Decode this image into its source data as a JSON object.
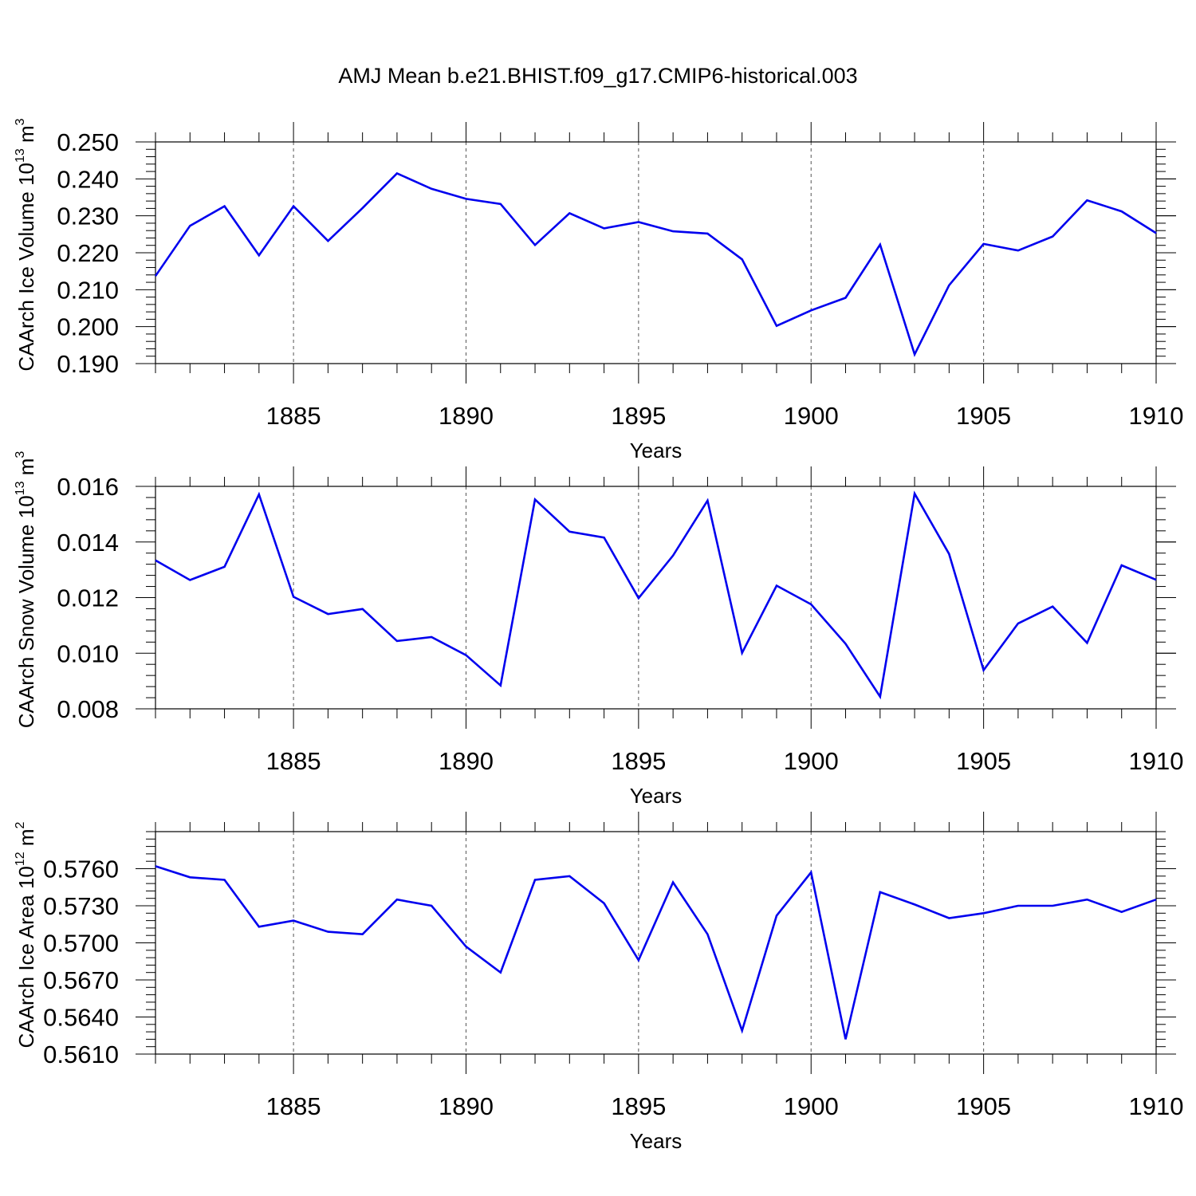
{
  "title": "AMJ Mean b.e21.BHIST.f09_g17.CMIP6-historical.003",
  "colors": {
    "line": "#0000ee",
    "axis": "#000000",
    "grid": "#555555",
    "background": "#ffffff"
  },
  "chart_data": [
    {
      "type": "line",
      "title": "AMJ Mean b.e21.BHIST.f09_g17.CMIP6-historical.003",
      "ylabel": {
        "main": "CAArch Ice Volume 10",
        "exp": "13",
        "unit": " m",
        "unit_exp": "3"
      },
      "xlabel": "Years",
      "xlim": [
        1881,
        1910
      ],
      "ylim": [
        0.19,
        0.25
      ],
      "xticks": [
        1885,
        1890,
        1895,
        1900,
        1905,
        1910
      ],
      "yticks": [
        0.19,
        0.2,
        0.21,
        0.22,
        0.23,
        0.24,
        0.25
      ],
      "ytick_labels": [
        "0.190",
        "0.200",
        "0.210",
        "0.220",
        "0.230",
        "0.240",
        "0.250"
      ],
      "grid": "vertical dashed at major x ticks",
      "x": [
        1881,
        1882,
        1883,
        1884,
        1885,
        1886,
        1887,
        1888,
        1889,
        1890,
        1891,
        1892,
        1893,
        1894,
        1895,
        1896,
        1897,
        1898,
        1899,
        1900,
        1901,
        1902,
        1903,
        1904,
        1905,
        1906,
        1907,
        1908,
        1909,
        1910
      ],
      "series": [
        {
          "name": "CAArch Ice Volume",
          "values": [
            0.2137,
            0.2273,
            0.2326,
            0.2193,
            0.2326,
            0.2232,
            0.2321,
            0.2415,
            0.2373,
            0.2346,
            0.2332,
            0.2221,
            0.2307,
            0.2266,
            0.2283,
            0.2258,
            0.2252,
            0.2182,
            0.2002,
            0.2044,
            0.2078,
            0.2222,
            0.1925,
            0.2112,
            0.2224,
            0.2206,
            0.2244,
            0.2342,
            0.2312,
            0.2253
          ]
        }
      ]
    },
    {
      "type": "line",
      "ylabel": {
        "main": "CAArch Snow Volume 10",
        "exp": "13",
        "unit": " m",
        "unit_exp": "3"
      },
      "xlabel": "Years",
      "xlim": [
        1881,
        1910
      ],
      "ylim": [
        0.008,
        0.016
      ],
      "xticks": [
        1885,
        1890,
        1895,
        1900,
        1905,
        1910
      ],
      "yticks": [
        0.008,
        0.01,
        0.012,
        0.014,
        0.016
      ],
      "ytick_labels": [
        "0.008",
        "0.010",
        "0.012",
        "0.014",
        "0.016"
      ],
      "grid": "vertical dashed at major x ticks",
      "x": [
        1881,
        1882,
        1883,
        1884,
        1885,
        1886,
        1887,
        1888,
        1889,
        1890,
        1891,
        1892,
        1893,
        1894,
        1895,
        1896,
        1897,
        1898,
        1899,
        1900,
        1901,
        1902,
        1903,
        1904,
        1905,
        1906,
        1907,
        1908,
        1909,
        1910
      ],
      "series": [
        {
          "name": "CAArch Snow Volume",
          "values": [
            0.01334,
            0.01263,
            0.01311,
            0.01571,
            0.01203,
            0.01141,
            0.01159,
            0.01044,
            0.01058,
            0.00993,
            0.00884,
            0.01553,
            0.01437,
            0.01416,
            0.01198,
            0.01351,
            0.01549,
            0.01001,
            0.01243,
            0.01176,
            0.01034,
            0.00844,
            0.01574,
            0.01357,
            0.00939,
            0.01107,
            0.01168,
            0.01037,
            0.01316,
            0.01264
          ]
        }
      ]
    },
    {
      "type": "line",
      "ylabel": {
        "main": "CAArch Ice Area 10",
        "exp": "12",
        "unit": " m",
        "unit_exp": "2"
      },
      "xlabel": "Years",
      "xlim": [
        1881,
        1910
      ],
      "ylim": [
        0.561,
        0.579
      ],
      "xticks": [
        1885,
        1890,
        1895,
        1900,
        1905,
        1910
      ],
      "yticks": [
        0.561,
        0.564,
        0.567,
        0.57,
        0.573,
        0.576
      ],
      "ytick_labels": [
        "0.5610",
        "0.5640",
        "0.5670",
        "0.5700",
        "0.5730",
        "0.5760"
      ],
      "grid": "vertical dashed at major x ticks",
      "x": [
        1881,
        1882,
        1883,
        1884,
        1885,
        1886,
        1887,
        1888,
        1889,
        1890,
        1891,
        1892,
        1893,
        1894,
        1895,
        1896,
        1897,
        1898,
        1899,
        1900,
        1901,
        1902,
        1903,
        1904,
        1905,
        1906,
        1907,
        1908,
        1909,
        1910
      ],
      "series": [
        {
          "name": "CAArch Ice Area",
          "values": [
            0.5762,
            0.5753,
            0.5751,
            0.5713,
            0.5718,
            0.5709,
            0.5707,
            0.5735,
            0.573,
            0.5697,
            0.5676,
            0.5751,
            0.5754,
            0.5732,
            0.5686,
            0.5749,
            0.5707,
            0.5629,
            0.5722,
            0.5757,
            0.5622,
            0.5741,
            0.5731,
            0.572,
            0.5724,
            0.573,
            0.573,
            0.5735,
            0.5725,
            0.5735
          ]
        }
      ]
    }
  ]
}
